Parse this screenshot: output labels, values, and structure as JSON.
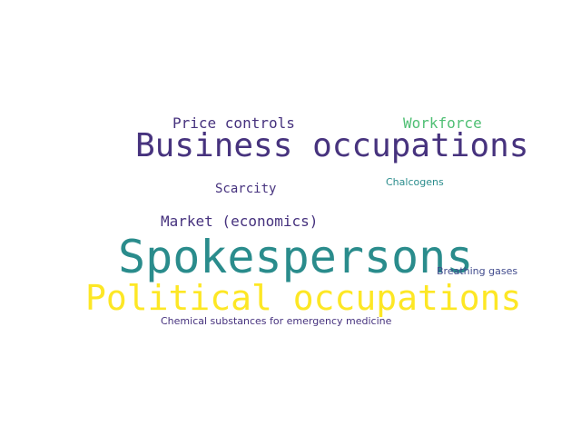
{
  "words": [
    {
      "text": "Political occupations",
      "color": "#fde725"
    },
    {
      "text": "Spokespersons",
      "color": "#2a8c8c"
    },
    {
      "text": "Business occupations",
      "color": "#47337e"
    },
    {
      "text": "Price controls",
      "color": "#46327e"
    },
    {
      "text": "Workforce",
      "color": "#4fbf74"
    },
    {
      "text": "Market (economics)",
      "color": "#46327e"
    },
    {
      "text": "Scarcity",
      "color": "#46327e"
    },
    {
      "text": "Chalcogens",
      "color": "#2a8c8c"
    },
    {
      "text": "Breathing gases",
      "color": "#414b8d"
    },
    {
      "text": "Chemical substances for emergency medicine",
      "color": "#46327e"
    }
  ]
}
